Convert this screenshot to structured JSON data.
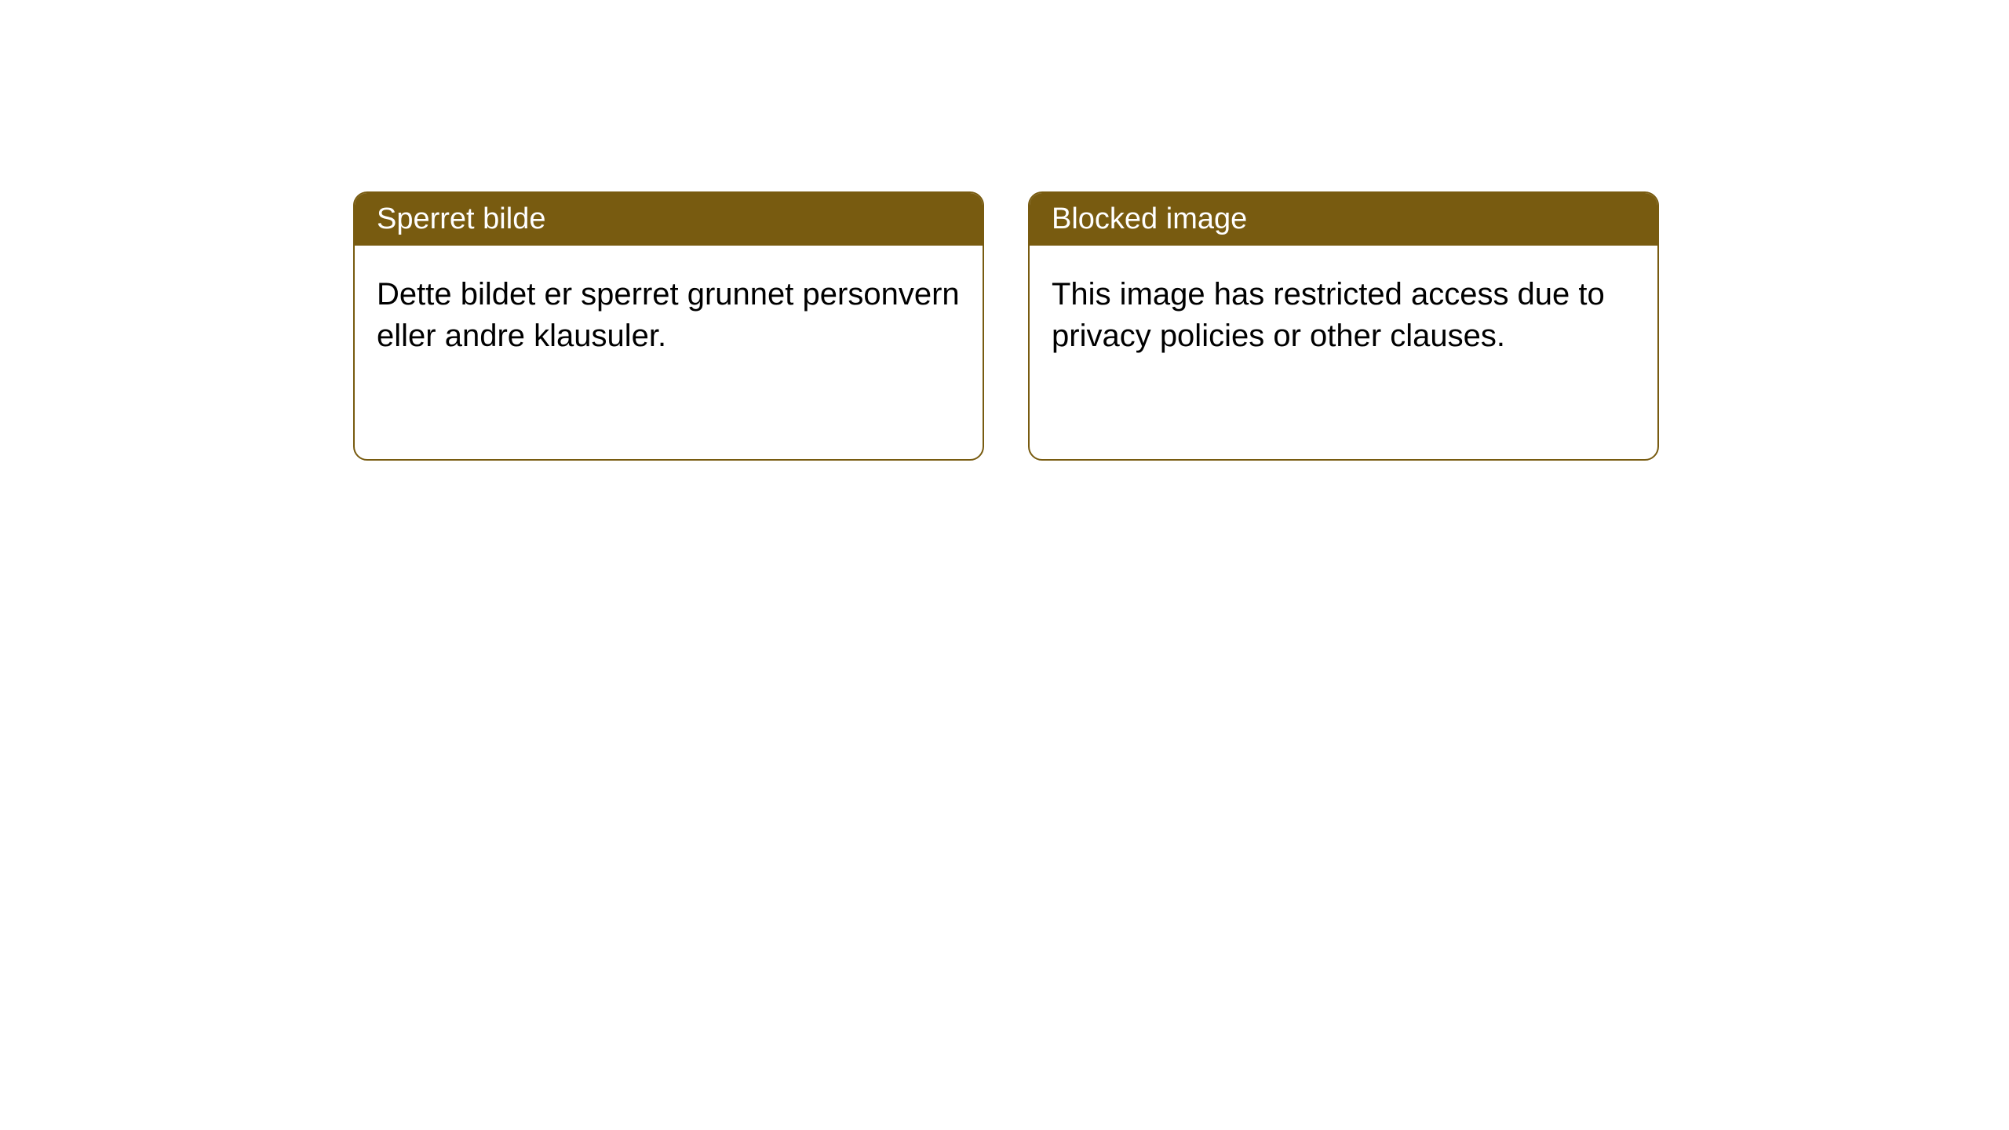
{
  "colors": {
    "header_bg": "#785b10",
    "header_text": "#ffffff",
    "body_bg": "#ffffff",
    "body_text": "#000000",
    "border": "#785b10"
  },
  "cards": {
    "norwegian": {
      "title": "Sperret bilde",
      "body": "Dette bildet er sperret grunnet personvern eller andre klausuler."
    },
    "english": {
      "title": "Blocked image",
      "body": "This image has restricted access due to privacy policies or other clauses."
    }
  }
}
